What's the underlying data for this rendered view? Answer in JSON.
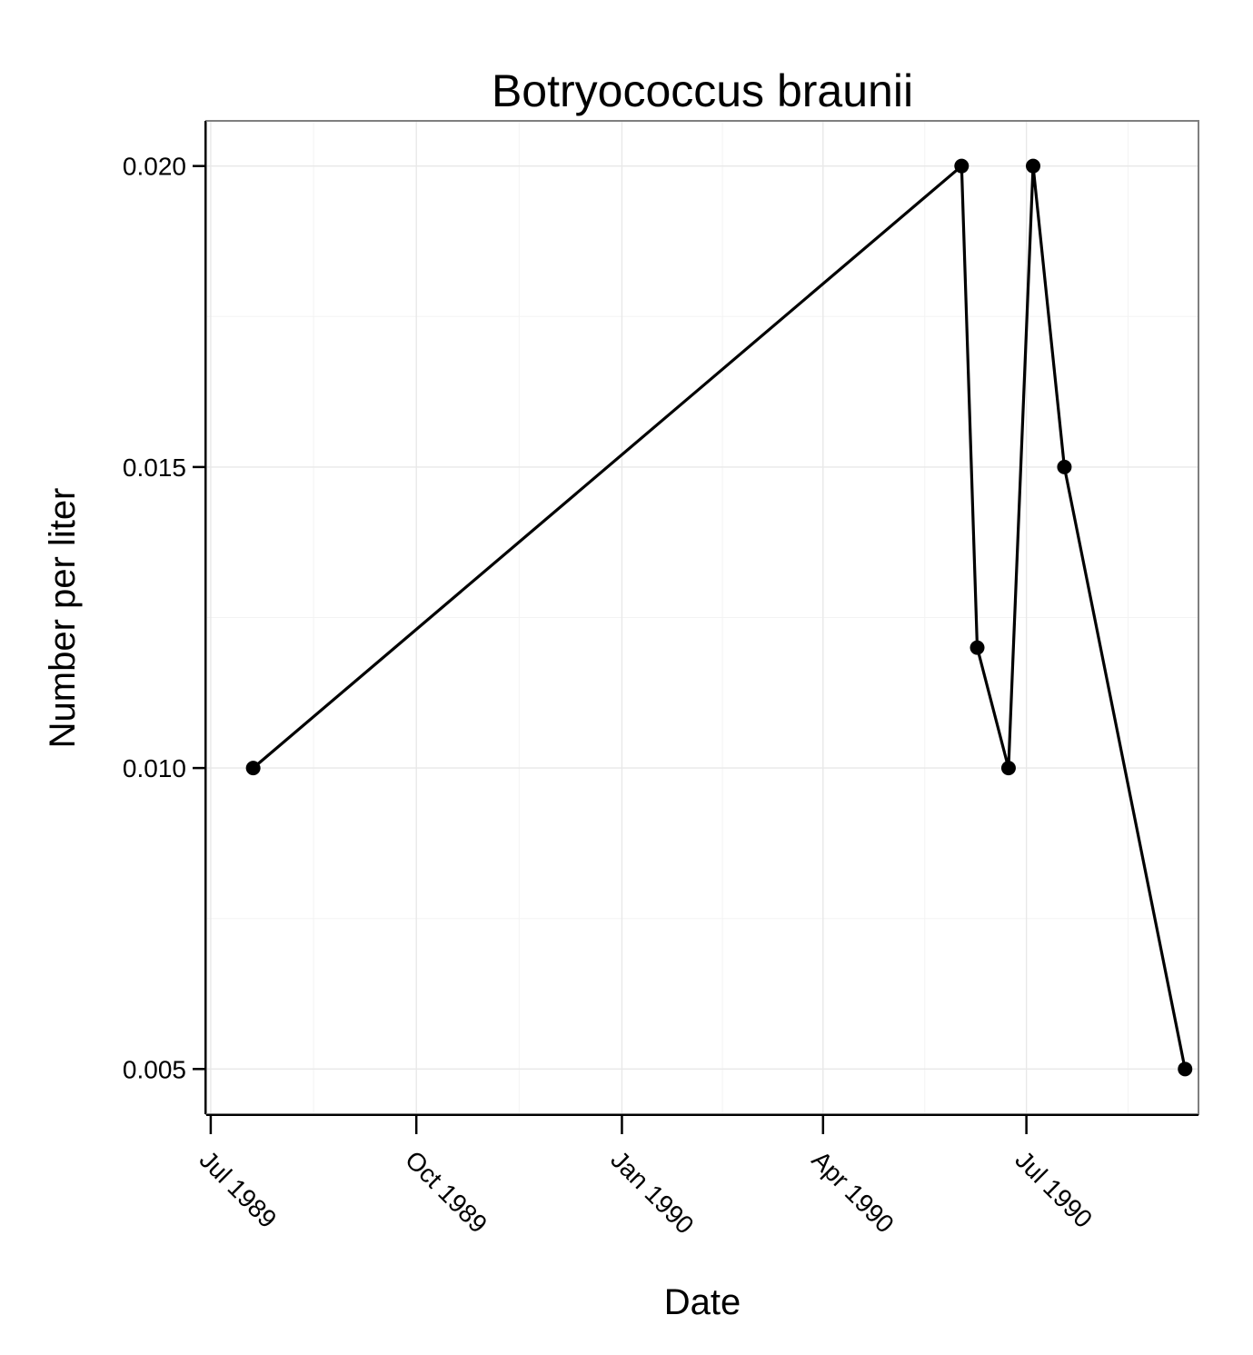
{
  "chart_data": {
    "type": "line",
    "title": "Botryococcus braunii",
    "xlabel": "Date",
    "ylabel": "Number per liter",
    "x_type": "date",
    "x_ticks": [
      {
        "date": "1989-07-01",
        "label": "Jul 1989"
      },
      {
        "date": "1989-10-01",
        "label": "Oct 1989"
      },
      {
        "date": "1990-01-01",
        "label": "Jan 1990"
      },
      {
        "date": "1990-04-01",
        "label": "Apr 1990"
      },
      {
        "date": "1990-07-01",
        "label": "Jul 1990"
      }
    ],
    "y_ticks": [
      {
        "value": 0.005,
        "label": "0.005"
      },
      {
        "value": 0.01,
        "label": "0.010"
      },
      {
        "value": 0.015,
        "label": "0.015"
      },
      {
        "value": 0.02,
        "label": "0.020"
      }
    ],
    "xlim": [
      "1989-06-29",
      "1990-09-16"
    ],
    "ylim": [
      0.00425,
      0.02075
    ],
    "grid": true,
    "series": [
      {
        "color": "#000000",
        "points": [
          {
            "x": "1989-07-20",
            "y": 0.01
          },
          {
            "x": "1990-06-02",
            "y": 0.02
          },
          {
            "x": "1990-06-09",
            "y": 0.012
          },
          {
            "x": "1990-06-23",
            "y": 0.01
          },
          {
            "x": "1990-07-04",
            "y": 0.02
          },
          {
            "x": "1990-07-18",
            "y": 0.015
          },
          {
            "x": "1990-09-10",
            "y": 0.005
          }
        ]
      }
    ]
  }
}
